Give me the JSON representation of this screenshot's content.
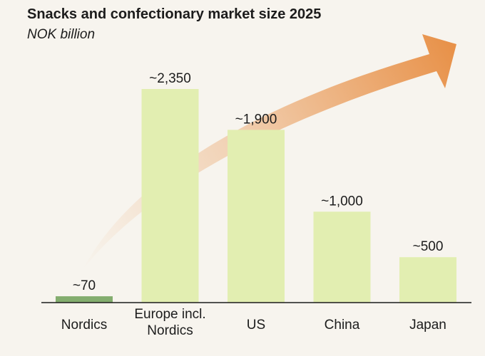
{
  "chart_data": {
    "type": "bar",
    "title": "Snacks and confectionary market size 2025",
    "subtitle": "NOK billion",
    "categories": [
      "Nordics",
      "Europe incl. Nordics",
      "US",
      "China",
      "Japan"
    ],
    "values": [
      70,
      2350,
      1900,
      1000,
      500
    ],
    "value_labels": [
      "~70",
      "~2,350",
      "~1,900",
      "~1,000",
      "~500"
    ],
    "ylim": [
      0,
      2350
    ],
    "grid": false,
    "legend": "none",
    "annotation": "upward-trend-arrow",
    "colors": {
      "highlight": "#83ad6e",
      "bar": "#e2eeb1",
      "arrow": "#e8924a",
      "axis": "#1c1c1c",
      "background": "#f7f4ee"
    },
    "highlight_index": 0
  }
}
